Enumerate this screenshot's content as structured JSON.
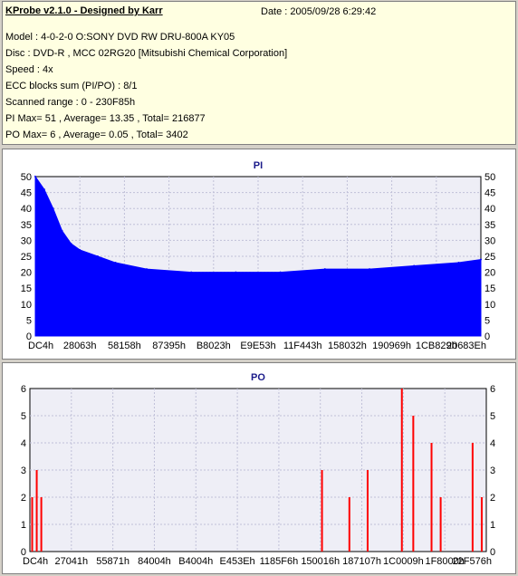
{
  "header": {
    "title": "KProbe v2.1.0 - Designed by Karr",
    "date": "Date : 2005/09/28 6:29:42",
    "lines": [
      "Model : 4-0-2-0 O:SONY    DVD RW DRU-800A  KY05",
      "Disc : DVD-R , MCC 02RG20  [Mitsubishi Chemical Corporation]",
      "Speed : 4x",
      "ECC blocks sum (PI/PO) : 8/1",
      "Scanned range : 0 - 230F85h",
      "PI Max= 51 , Average= 13.35 , Total= 216877",
      "PO Max= 6 , Average= 0.05 , Total= 3402"
    ]
  },
  "chart_data": [
    {
      "type": "area",
      "title": "PI",
      "color": "#0000ff",
      "x_ticks": [
        "DC4h",
        "28063h",
        "58158h",
        "87395h",
        "B8023h",
        "E9E53h",
        "11F443h",
        "158032h",
        "190969h",
        "1CB829h",
        "20683Eh"
      ],
      "y_ticks": [
        0,
        5,
        10,
        15,
        20,
        25,
        30,
        35,
        40,
        45,
        50
      ],
      "ylim": [
        0,
        50
      ],
      "grid": true,
      "x": [
        0,
        2,
        4,
        6,
        8,
        10,
        14,
        18,
        25,
        35,
        45,
        55,
        65,
        75,
        85,
        95,
        100
      ],
      "values": [
        50,
        46,
        40,
        33,
        29,
        27,
        25,
        23,
        21,
        20,
        20,
        20,
        21,
        21,
        22,
        23,
        24
      ]
    },
    {
      "type": "bar",
      "title": "PO",
      "color": "#ff0000",
      "x_ticks": [
        "DC4h",
        "27041h",
        "55871h",
        "84004h",
        "B4004h",
        "E453Eh",
        "1185F6h",
        "150016h",
        "187107h",
        "1C0009h",
        "1F8000h",
        "22F576h"
      ],
      "y_ticks": [
        0,
        1,
        2,
        3,
        4,
        5,
        6
      ],
      "ylim": [
        0,
        6
      ],
      "grid": true,
      "x": [
        0.5,
        1.5,
        2.5,
        64,
        70,
        74,
        81.5,
        84,
        88,
        90,
        97,
        99
      ],
      "values": [
        2,
        3,
        2,
        3,
        2,
        3,
        6,
        5,
        4,
        2,
        4,
        2
      ]
    }
  ]
}
